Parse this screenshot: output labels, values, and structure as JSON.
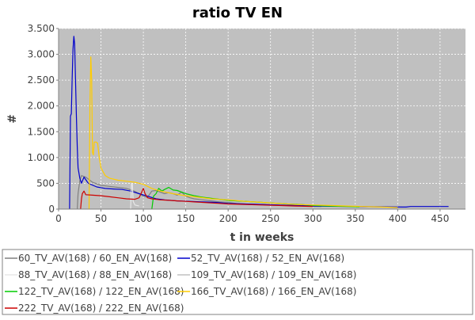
{
  "chart_data": {
    "type": "line",
    "title": "ratio TV EN",
    "xlabel": "t in weeks",
    "ylabel": "#",
    "xlim": [
      0,
      480
    ],
    "ylim": [
      0,
      3500
    ],
    "x_ticks": [
      0,
      50,
      100,
      150,
      200,
      250,
      300,
      350,
      400,
      450
    ],
    "y_ticks": [
      0,
      500,
      1000,
      1500,
      2000,
      2500,
      3000,
      3500
    ],
    "x_tick_labels": [
      "0",
      "50",
      "100",
      "150",
      "200",
      "250",
      "300",
      "350",
      "400",
      "450"
    ],
    "y_tick_labels": [
      "0",
      "500",
      "1.000",
      "1.500",
      "2.000",
      "2.500",
      "3.000",
      "3.500"
    ],
    "grid": true,
    "plot_background": "#c0c0c0",
    "legend_position": "bottom",
    "series": [
      {
        "name": "60_TV_AV(168) / 60_EN_AV(168)",
        "color": "#808080",
        "points": [
          [
            22,
            0
          ],
          [
            23,
            300
          ],
          [
            25,
            550
          ],
          [
            27,
            650
          ],
          [
            32,
            620
          ],
          [
            40,
            520
          ],
          [
            50,
            460
          ],
          [
            60,
            440
          ],
          [
            70,
            420
          ],
          [
            80,
            400
          ],
          [
            88,
            360
          ],
          [
            95,
            300
          ],
          [
            100,
            250
          ],
          [
            105,
            230
          ],
          [
            110,
            350
          ],
          [
            115,
            360
          ],
          [
            120,
            330
          ],
          [
            125,
            300
          ],
          [
            130,
            320
          ],
          [
            135,
            300
          ],
          [
            140,
            270
          ],
          [
            145,
            330
          ],
          [
            150,
            250
          ],
          [
            155,
            220
          ],
          [
            160,
            200
          ],
          [
            170,
            180
          ],
          [
            180,
            160
          ],
          [
            190,
            140
          ],
          [
            200,
            130
          ],
          [
            210,
            110
          ],
          [
            220,
            100
          ],
          [
            235,
            90
          ],
          [
            250,
            80
          ],
          [
            270,
            70
          ],
          [
            290,
            60
          ],
          [
            310,
            50
          ]
        ]
      },
      {
        "name": "52_TV_AV(168) / 52_EN_AV(168)",
        "color": "#0000cc",
        "points": [
          [
            13,
            0
          ],
          [
            14,
            1800
          ],
          [
            15,
            1850
          ],
          [
            16,
            2500
          ],
          [
            17,
            3100
          ],
          [
            18,
            3350
          ],
          [
            19,
            3200
          ],
          [
            20,
            2500
          ],
          [
            21,
            1800
          ],
          [
            22,
            1200
          ],
          [
            23,
            800
          ],
          [
            25,
            600
          ],
          [
            27,
            500
          ],
          [
            30,
            620
          ],
          [
            35,
            500
          ],
          [
            45,
            430
          ],
          [
            55,
            400
          ],
          [
            65,
            390
          ],
          [
            75,
            380
          ],
          [
            85,
            350
          ],
          [
            95,
            300
          ],
          [
            105,
            250
          ],
          [
            115,
            200
          ],
          [
            125,
            180
          ],
          [
            140,
            160
          ],
          [
            155,
            150
          ],
          [
            170,
            140
          ],
          [
            185,
            130
          ],
          [
            200,
            110
          ],
          [
            220,
            100
          ],
          [
            240,
            90
          ],
          [
            260,
            80
          ],
          [
            280,
            70
          ],
          [
            300,
            60
          ],
          [
            320,
            55
          ],
          [
            350,
            50
          ],
          [
            380,
            45
          ],
          [
            410,
            40
          ],
          [
            415,
            50
          ],
          [
            440,
            50
          ],
          [
            460,
            50
          ]
        ]
      },
      {
        "name": "88_TV_AV(168) / 88_EN_AV(168)",
        "color": "#e8e8e8",
        "points": [
          [
            85,
            0
          ],
          [
            86,
            500
          ],
          [
            87,
            480
          ],
          [
            88,
            150
          ],
          [
            90,
            80
          ],
          [
            95,
            60
          ]
        ]
      },
      {
        "name": "109_TV_AV(168) / 109_EN_AV(168)",
        "color": "#c0c0c0",
        "points": [
          [
            106,
            0
          ],
          [
            110,
            150
          ],
          [
            120,
            120
          ],
          [
            130,
            100
          ]
        ]
      },
      {
        "name": "122_TV_AV(168) / 122_EN_AV(168)",
        "color": "#00cc00",
        "points": [
          [
            110,
            0
          ],
          [
            112,
            250
          ],
          [
            115,
            300
          ],
          [
            118,
            400
          ],
          [
            122,
            350
          ],
          [
            125,
            380
          ],
          [
            130,
            420
          ],
          [
            135,
            370
          ],
          [
            140,
            360
          ],
          [
            145,
            330
          ],
          [
            150,
            300
          ],
          [
            160,
            260
          ],
          [
            170,
            230
          ],
          [
            180,
            210
          ],
          [
            190,
            190
          ],
          [
            200,
            170
          ],
          [
            210,
            160
          ],
          [
            220,
            150
          ],
          [
            230,
            140
          ],
          [
            240,
            130
          ],
          [
            250,
            120
          ],
          [
            260,
            110
          ],
          [
            270,
            100
          ],
          [
            285,
            90
          ],
          [
            300,
            70
          ],
          [
            320,
            60
          ],
          [
            340,
            50
          ],
          [
            355,
            45
          ]
        ]
      },
      {
        "name": "166_TV_AV(168) / 166_EN_AV(168)",
        "color": "#ffcc00",
        "points": [
          [
            36,
            0
          ],
          [
            37,
            2000
          ],
          [
            38,
            2950
          ],
          [
            39,
            2500
          ],
          [
            40,
            1100
          ],
          [
            41,
            1050
          ],
          [
            42,
            1300
          ],
          [
            44,
            1300
          ],
          [
            46,
            1280
          ],
          [
            48,
            1000
          ],
          [
            50,
            800
          ],
          [
            55,
            650
          ],
          [
            60,
            600
          ],
          [
            70,
            560
          ],
          [
            80,
            540
          ],
          [
            90,
            520
          ],
          [
            100,
            480
          ],
          [
            110,
            400
          ],
          [
            120,
            350
          ],
          [
            135,
            300
          ],
          [
            150,
            260
          ],
          [
            165,
            230
          ],
          [
            180,
            200
          ],
          [
            200,
            180
          ],
          [
            220,
            150
          ],
          [
            240,
            130
          ],
          [
            260,
            110
          ],
          [
            280,
            90
          ],
          [
            300,
            80
          ],
          [
            320,
            70
          ],
          [
            340,
            60
          ],
          [
            360,
            50
          ],
          [
            380,
            40
          ],
          [
            400,
            30
          ]
        ]
      },
      {
        "name": "222_TV_AV(168) / 222_EN_AV(168)",
        "color": "#cc0000",
        "points": [
          [
            26,
            0
          ],
          [
            27,
            200
          ],
          [
            28,
            300
          ],
          [
            30,
            350
          ],
          [
            32,
            280
          ],
          [
            40,
            270
          ],
          [
            50,
            260
          ],
          [
            60,
            240
          ],
          [
            70,
            220
          ],
          [
            80,
            200
          ],
          [
            90,
            190
          ],
          [
            95,
            220
          ],
          [
            100,
            400
          ],
          [
            102,
            300
          ],
          [
            105,
            220
          ],
          [
            110,
            200
          ],
          [
            120,
            180
          ],
          [
            130,
            170
          ],
          [
            140,
            160
          ],
          [
            150,
            150
          ],
          [
            160,
            140
          ],
          [
            170,
            130
          ],
          [
            180,
            120
          ],
          [
            190,
            110
          ],
          [
            200,
            100
          ],
          [
            220,
            90
          ],
          [
            240,
            80
          ],
          [
            260,
            70
          ],
          [
            280,
            60
          ],
          [
            300,
            50
          ]
        ]
      }
    ]
  }
}
